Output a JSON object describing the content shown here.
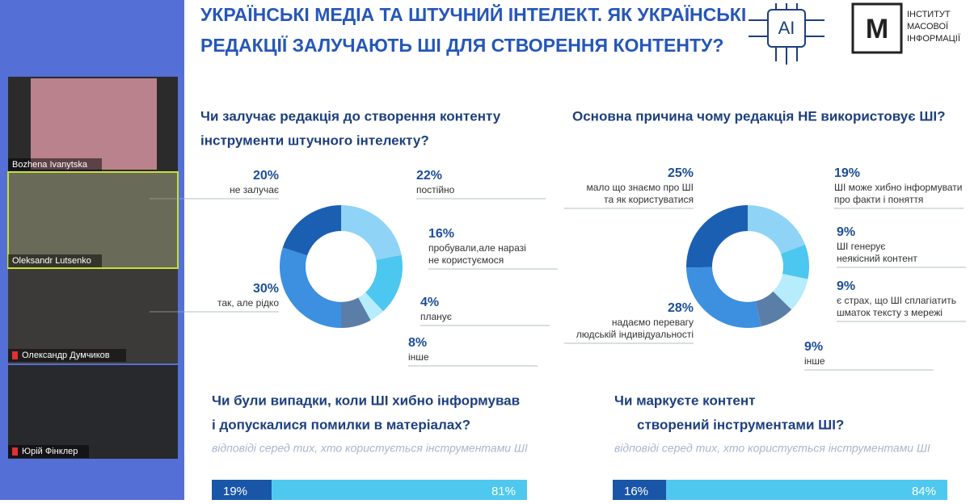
{
  "participants": [
    "Bozhena Ivanytska",
    "Oleksandr Lutsenko",
    "Олександр Думчиков",
    "Юрій Фінклер"
  ],
  "slide": {
    "title_lines": [
      "УКРАЇНСЬКІ МЕДІА ТА ШТУЧНИЙ ІНТЕЛЕКТ.  ЯК УКРАЇНСЬКІ",
      "РЕДАКЦІЇ ЗАЛУЧАЮТЬ ШІ ДЛЯ СТВОРЕННЯ КОНТЕНТУ?"
    ],
    "logo_ai": "AI",
    "logo_org_lines": [
      "ІНСТИТУТ",
      "МАСОВОЇ",
      "ІНФОРМАЦІЇ"
    ],
    "charts": [
      {
        "type": "donut",
        "title_lines": [
          "Чи залучає редакція до створення контенту",
          "інструменти штучного інтелекту?"
        ],
        "values": [
          22,
          16,
          4,
          8,
          30,
          20
        ],
        "value_labels": [
          "22%",
          "16%",
          "4%",
          "8%",
          "30%",
          "20%"
        ],
        "labels": [
          [
            "постійно"
          ],
          [
            "пробували,але наразі",
            "не користуємося"
          ],
          [
            "планує"
          ],
          [
            "інше"
          ],
          [
            "так, але рідко"
          ],
          [
            "не залучає"
          ]
        ],
        "colors": [
          "#8fd4f6",
          "#4cc7f0",
          "#b6ecfb",
          "#5a7ea8",
          "#3d8fe0",
          "#1b5fb2"
        ]
      },
      {
        "type": "donut",
        "title_lines": [
          "Основна причина чому редакція НЕ використовує ШІ?"
        ],
        "values": [
          19,
          9,
          9,
          9,
          28,
          25
        ],
        "value_labels": [
          "19%",
          "9%",
          "9%",
          "9%",
          "28%",
          "25%"
        ],
        "labels": [
          [
            "ШІ може хибно інформувати",
            "про факти і поняття"
          ],
          [
            "ШІ генерує",
            "неякісний контент"
          ],
          [
            "є страх, що ШІ сплагіатить",
            "шматок тексту з мережі"
          ],
          [
            "інше"
          ],
          [
            "надаємо перевагу",
            "людській індивідуальності"
          ],
          [
            "мало що знаємо про ШІ",
            "та як користуватися"
          ]
        ],
        "colors": [
          "#8fd4f6",
          "#4cc7f0",
          "#b6ecfb",
          "#5a7ea8",
          "#3d8fe0",
          "#1b5fb2"
        ]
      },
      {
        "type": "stacked_bar",
        "title_lines": [
          "Чи були  випадки, коли ШІ хибно інформував",
          "і допускалися помилки в матеріалах?"
        ],
        "subtitle": "відповіді серед тих, хто користується інструментами ШІ",
        "values": [
          19,
          81
        ],
        "value_labels": [
          "19%",
          "81%"
        ],
        "colors": [
          "#1a56a8",
          "#4fc8ef"
        ]
      },
      {
        "type": "stacked_bar",
        "title_lines": [
          "Чи маркуєте контент",
          "створений інструментами ШІ?"
        ],
        "subtitle": "відповіді серед тих, хто користується інструментами ШІ",
        "values": [
          16,
          84
        ],
        "value_labels": [
          "16%",
          "84%"
        ],
        "colors": [
          "#1a56a8",
          "#4fc8ef"
        ]
      }
    ]
  }
}
